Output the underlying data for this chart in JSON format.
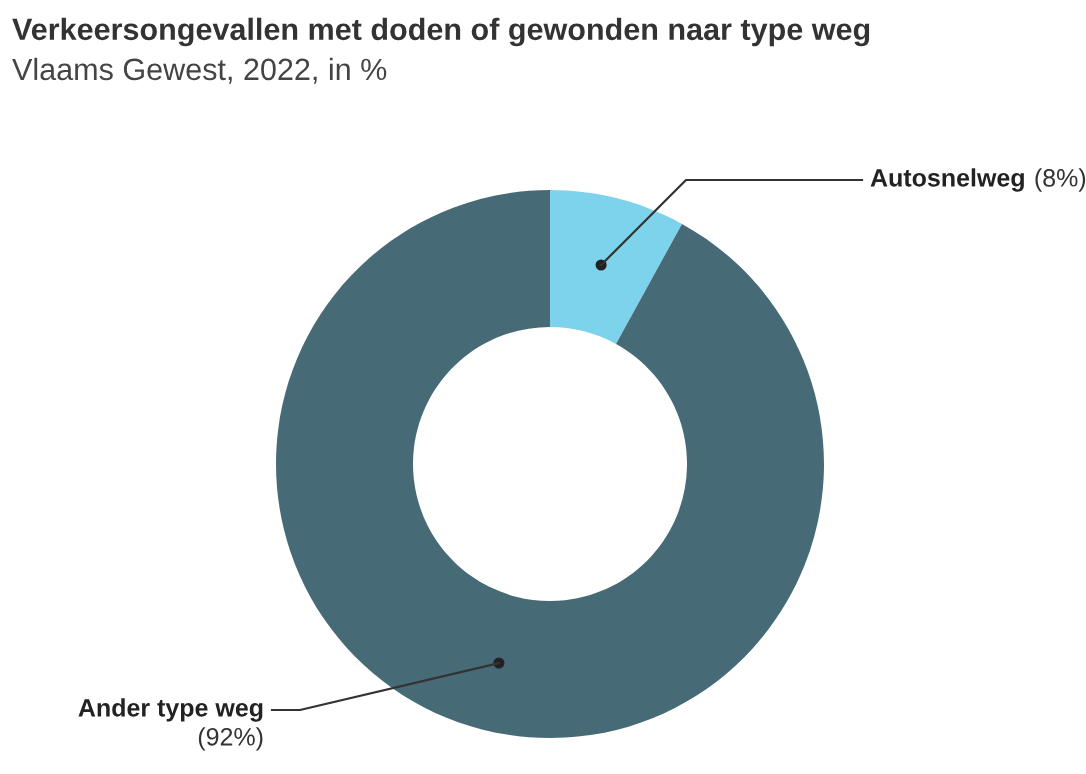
{
  "chart_data": {
    "type": "donut",
    "title": "Verkeersongevallen met doden of gewonden naar type weg",
    "subtitle": "Vlaams Gewest, 2022, in %",
    "categories": [
      "Autosnelweg",
      "Ander type weg"
    ],
    "values": [
      8,
      92
    ],
    "value_labels": [
      "(8%)",
      "(92%)"
    ],
    "colors": [
      "#7dd3ec",
      "#476a77"
    ],
    "legend": false
  }
}
